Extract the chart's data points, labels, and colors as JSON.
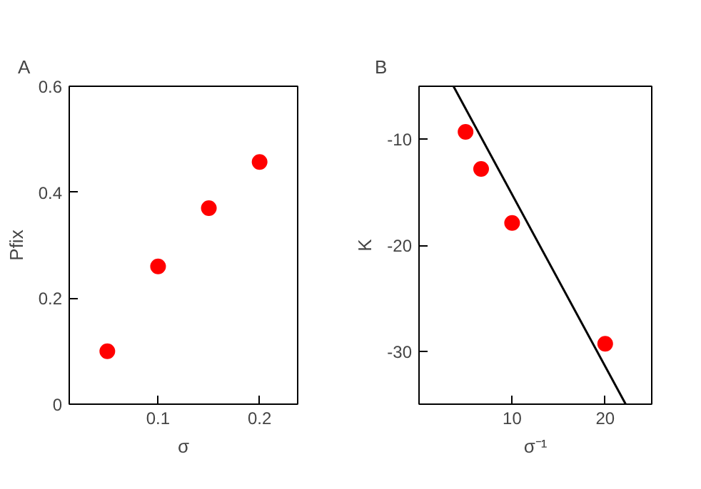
{
  "chart_data": [
    {
      "type": "scatter",
      "title": "A",
      "xlabel": "σ",
      "ylabel": "Pfix",
      "grid": false,
      "x": [
        0.05,
        0.1,
        0.15,
        0.2
      ],
      "series": [
        {
          "color": "#ff0000",
          "marker": "circle",
          "values": [
            0.1,
            0.26,
            0.37,
            0.457
          ]
        }
      ],
      "xlim": [
        0.0125,
        0.2375
      ],
      "xticks": [
        0.1,
        0.2
      ],
      "ylim": [
        0,
        0.6
      ],
      "yticks": [
        0,
        0.2,
        0.4,
        0.6
      ]
    },
    {
      "type": "scatter",
      "title": "B",
      "xlabel": "σ⁻¹",
      "ylabel": "K",
      "grid": false,
      "x": [
        5,
        6.67,
        10,
        20
      ],
      "series": [
        {
          "color": "#ff0000",
          "marker": "circle",
          "values": [
            -9.3,
            -12.8,
            -17.9,
            -29.3
          ]
        },
        {
          "type": "line",
          "color": "#000000",
          "x": [
            3.7,
            22.2
          ],
          "values": [
            -5,
            -35
          ]
        }
      ],
      "xlim": [
        0,
        25
      ],
      "xticks": [
        10,
        20
      ],
      "ylim": [
        -35,
        -5
      ],
      "yticks": [
        -10,
        -20,
        -30
      ]
    }
  ]
}
